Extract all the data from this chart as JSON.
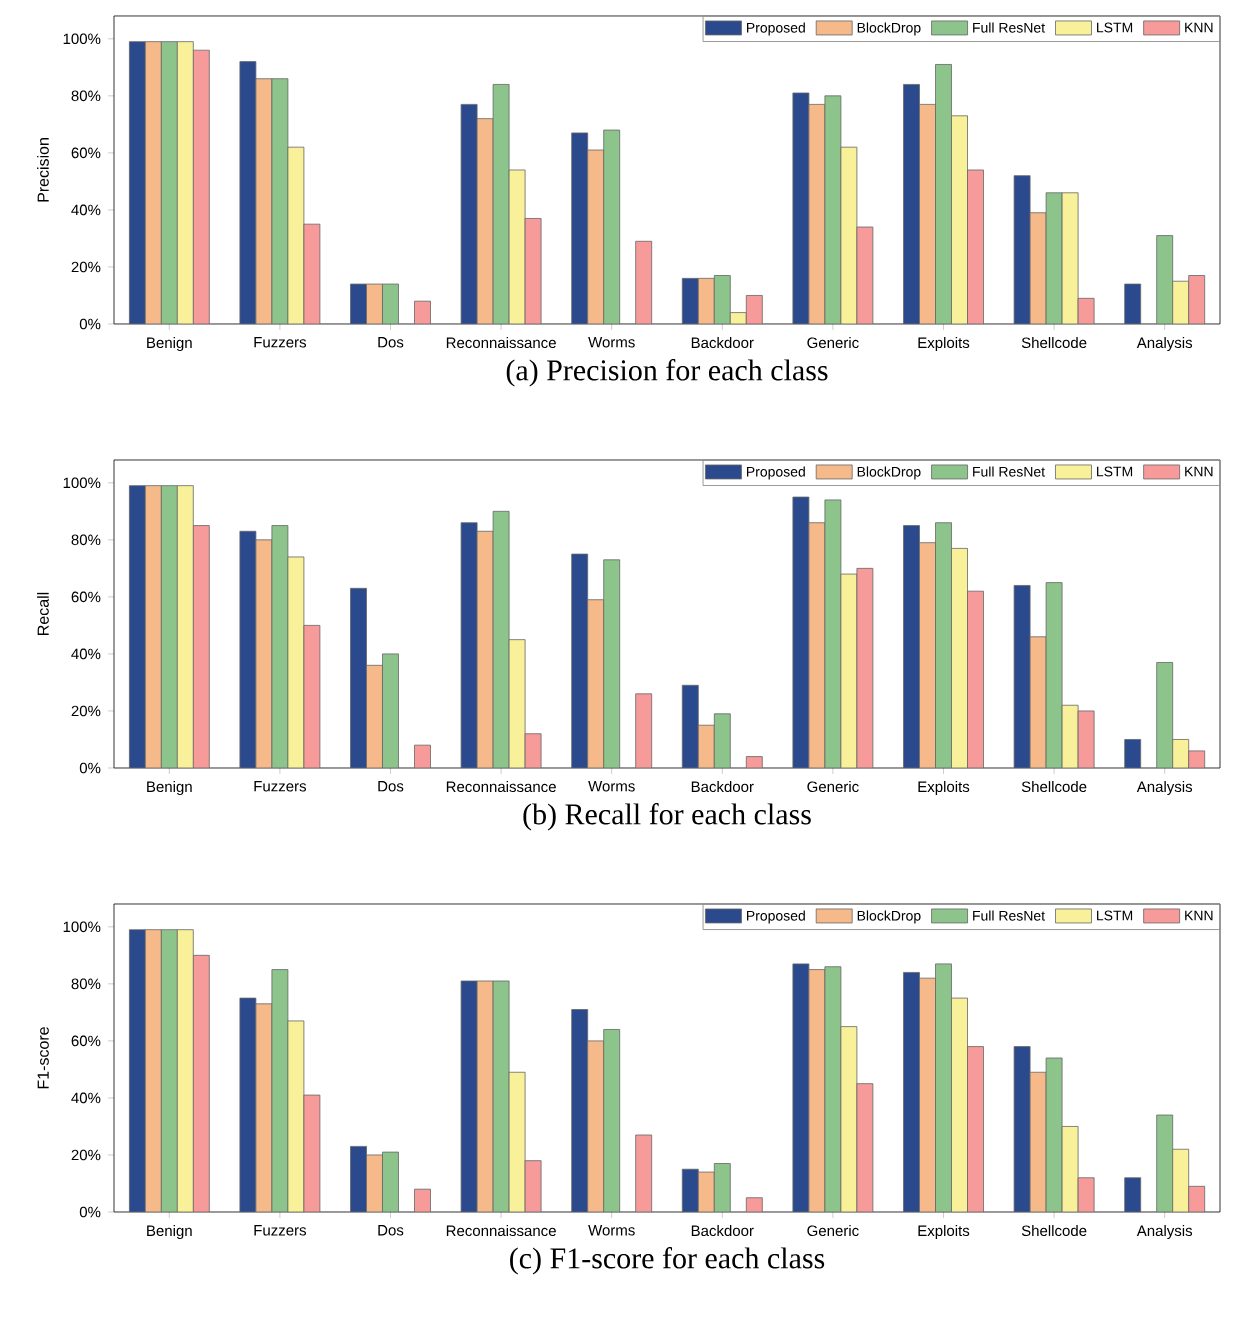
{
  "chart_data": [
    {
      "type": "bar",
      "title": "(a) Precision for each class",
      "ylabel": "Precision",
      "categories": [
        "Benign",
        "Fuzzers",
        "Dos",
        "Reconnaissance",
        "Worms",
        "Backdoor",
        "Generic",
        "Exploits",
        "Shellcode",
        "Analysis"
      ],
      "ylim": [
        0,
        108
      ],
      "yticks": [
        {
          "value": 0,
          "label": "0%"
        },
        {
          "value": 20,
          "label": "20%"
        },
        {
          "value": 40,
          "label": "40%"
        },
        {
          "value": 60,
          "label": "60%"
        },
        {
          "value": 80,
          "label": "80%"
        },
        {
          "value": 100,
          "label": "100%"
        }
      ],
      "legend": "top right",
      "series": [
        {
          "name": "Proposed",
          "color": "#2b4a8e",
          "values": [
            99,
            92,
            14,
            77,
            67,
            16,
            81,
            84,
            52,
            14
          ]
        },
        {
          "name": "BlockDrop",
          "color": "#f5b98a",
          "values": [
            99,
            86,
            14,
            72,
            61,
            16,
            77,
            77,
            39,
            null
          ]
        },
        {
          "name": "Full ResNet",
          "color": "#8cc48c",
          "values": [
            99,
            86,
            14,
            84,
            68,
            17,
            80,
            91,
            46,
            31
          ]
        },
        {
          "name": "LSTM",
          "color": "#f8f19a",
          "values": [
            99,
            62,
            null,
            54,
            null,
            4,
            62,
            73,
            46,
            15
          ]
        },
        {
          "name": "KNN",
          "color": "#f79a9a",
          "values": [
            96,
            35,
            8,
            37,
            29,
            10,
            34,
            54,
            9,
            17
          ]
        }
      ]
    },
    {
      "type": "bar",
      "title": "(b) Recall for each class",
      "ylabel": "Recall",
      "categories": [
        "Benign",
        "Fuzzers",
        "Dos",
        "Reconnaissance",
        "Worms",
        "Backdoor",
        "Generic",
        "Exploits",
        "Shellcode",
        "Analysis"
      ],
      "ylim": [
        0,
        108
      ],
      "yticks": [
        {
          "value": 0,
          "label": "0%"
        },
        {
          "value": 20,
          "label": "20%"
        },
        {
          "value": 40,
          "label": "40%"
        },
        {
          "value": 60,
          "label": "60%"
        },
        {
          "value": 80,
          "label": "80%"
        },
        {
          "value": 100,
          "label": "100%"
        }
      ],
      "legend": "top right",
      "series": [
        {
          "name": "Proposed",
          "color": "#2b4a8e",
          "values": [
            99,
            83,
            63,
            86,
            75,
            29,
            95,
            85,
            64,
            10
          ]
        },
        {
          "name": "BlockDrop",
          "color": "#f5b98a",
          "values": [
            99,
            80,
            36,
            83,
            59,
            15,
            86,
            79,
            46,
            null
          ]
        },
        {
          "name": "Full ResNet",
          "color": "#8cc48c",
          "values": [
            99,
            85,
            40,
            90,
            73,
            19,
            94,
            86,
            65,
            37
          ]
        },
        {
          "name": "LSTM",
          "color": "#f8f19a",
          "values": [
            99,
            74,
            null,
            45,
            null,
            null,
            68,
            77,
            22,
            10
          ]
        },
        {
          "name": "KNN",
          "color": "#f79a9a",
          "values": [
            85,
            50,
            8,
            12,
            26,
            4,
            70,
            62,
            20,
            6
          ]
        }
      ]
    },
    {
      "type": "bar",
      "title": "(c) F1-score for each class",
      "ylabel": "F1-score",
      "categories": [
        "Benign",
        "Fuzzers",
        "Dos",
        "Reconnaissance",
        "Worms",
        "Backdoor",
        "Generic",
        "Exploits",
        "Shellcode",
        "Analysis"
      ],
      "ylim": [
        0,
        108
      ],
      "yticks": [
        {
          "value": 0,
          "label": "0%"
        },
        {
          "value": 20,
          "label": "20%"
        },
        {
          "value": 40,
          "label": "40%"
        },
        {
          "value": 60,
          "label": "60%"
        },
        {
          "value": 80,
          "label": "80%"
        },
        {
          "value": 100,
          "label": "100%"
        }
      ],
      "legend": "top right",
      "series": [
        {
          "name": "Proposed",
          "color": "#2b4a8e",
          "values": [
            99,
            75,
            23,
            81,
            71,
            15,
            87,
            84,
            58,
            12
          ]
        },
        {
          "name": "BlockDrop",
          "color": "#f5b98a",
          "values": [
            99,
            73,
            20,
            81,
            60,
            14,
            85,
            82,
            49,
            null
          ]
        },
        {
          "name": "Full ResNet",
          "color": "#8cc48c",
          "values": [
            99,
            85,
            21,
            81,
            64,
            17,
            86,
            87,
            54,
            34
          ]
        },
        {
          "name": "LSTM",
          "color": "#f8f19a",
          "values": [
            99,
            67,
            null,
            49,
            null,
            null,
            65,
            75,
            30,
            22
          ]
        },
        {
          "name": "KNN",
          "color": "#f79a9a",
          "values": [
            90,
            41,
            8,
            18,
            27,
            5,
            45,
            58,
            12,
            9
          ]
        }
      ]
    }
  ]
}
